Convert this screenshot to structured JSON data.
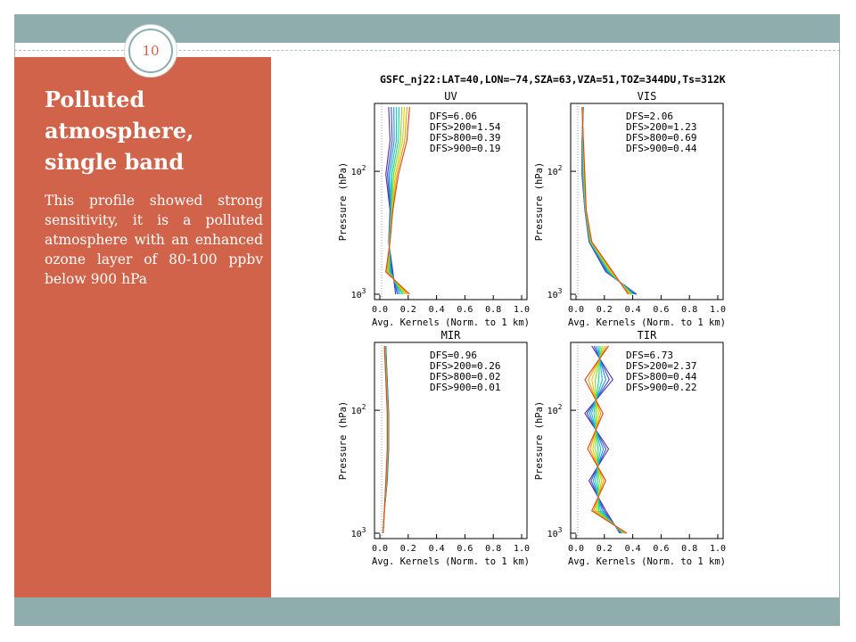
{
  "slide": {
    "number": "10",
    "title": "Polluted atmosphere, single band",
    "body": "This profile showed strong sensitivity, it is a polluted atmosphere with an enhanced ozone layer of 80-100 ppbv below 900 hPa"
  },
  "theme": {
    "accent": "#d0634a",
    "bar": "#8fadad",
    "background": "#ffffff"
  },
  "figure": {
    "header": "GSFC_nj22:LAT=40,LON=−74,SZA=63,VZA=51,TOZ=344DU,Ts=312K",
    "ylabel": "Pressure (hPa)",
    "xlabel": "Avg. Kernels (Norm. to 1 km)",
    "x_ticks": [
      "0.0",
      "0.2",
      "0.4",
      "0.6",
      "0.8",
      "1.0"
    ],
    "y_tick_base": "10",
    "y_ticks": [
      {
        "exp": "2",
        "value": 100
      },
      {
        "exp": "3",
        "value": 1000
      }
    ]
  },
  "chart_data": [
    {
      "type": "line",
      "title": "UV",
      "xlim": [
        0,
        1
      ],
      "ylim": [
        1000,
        30
      ],
      "y_scale": "log",
      "annotations": [
        "DFS=6.06",
        "DFS>200=1.54",
        "DFS>800=0.39",
        "DFS>900=0.19"
      ]
    },
    {
      "type": "line",
      "title": "VIS",
      "xlim": [
        0,
        1
      ],
      "ylim": [
        1000,
        30
      ],
      "y_scale": "log",
      "annotations": [
        "DFS=2.06",
        "DFS>200=1.23",
        "DFS>800=0.69",
        "DFS>900=0.44"
      ]
    },
    {
      "type": "line",
      "title": "MIR",
      "xlim": [
        0,
        1
      ],
      "ylim": [
        1000,
        30
      ],
      "y_scale": "log",
      "annotations": [
        "DFS=0.96",
        "DFS>200=0.26",
        "DFS>800=0.02",
        "DFS>900=0.01"
      ]
    },
    {
      "type": "line",
      "title": "TIR",
      "xlim": [
        0,
        1
      ],
      "ylim": [
        1000,
        30
      ],
      "y_scale": "log",
      "annotations": [
        "DFS=6.73",
        "DFS>200=2.37",
        "DFS>800=0.44",
        "DFS>900=0.22"
      ]
    }
  ]
}
